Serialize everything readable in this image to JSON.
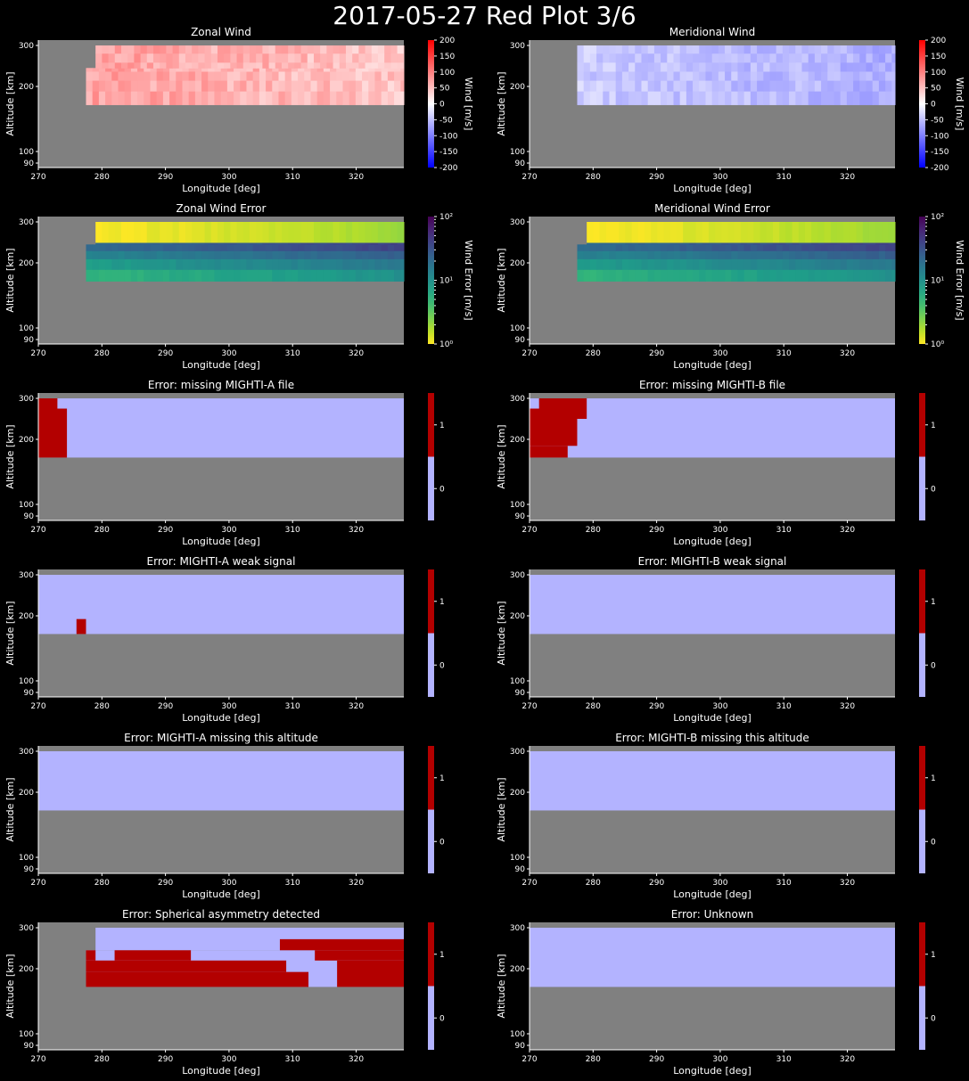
{
  "figure": {
    "title": "2017-05-27 Red Plot 3/6"
  },
  "axes_common": {
    "xlabel": "Longitude [deg]",
    "ylabel": "Altitude [km]",
    "xticks": [
      270,
      280,
      290,
      300,
      310,
      320
    ],
    "yticks": [
      90,
      100,
      200,
      300
    ],
    "xlim": [
      270,
      327.5
    ],
    "ylim": [
      87,
      312
    ]
  },
  "colors": {
    "background": "#000000",
    "nodata": "#808080",
    "flag_0": "#b3b3ff",
    "flag_1": "#b30000",
    "text": "#ffffff"
  },
  "chart_data": [
    {
      "id": "zonal-wind",
      "type": "heatmap",
      "title": "Zonal Wind",
      "colorbar": {
        "kind": "diverging",
        "label": "Wind [m/s]",
        "ticks": [
          200,
          150,
          100,
          50,
          0,
          -50,
          -100,
          -150,
          -200
        ],
        "range": [
          -200,
          200
        ]
      },
      "valid_region": {
        "rows": [
          {
            "alt": [
              172,
              245
            ],
            "lon": [
              277.5,
              327.5
            ]
          },
          {
            "alt": [
              245,
              300
            ],
            "lon": [
              279,
              327.5
            ]
          }
        ]
      },
      "pattern": {
        "base": 75,
        "amp": 45
      }
    },
    {
      "id": "meridional-wind",
      "type": "heatmap",
      "title": "Meridional Wind",
      "colorbar": {
        "kind": "diverging",
        "label": "Wind [m/s]",
        "ticks": [
          200,
          150,
          100,
          50,
          0,
          -50,
          -100,
          -150,
          -200
        ],
        "range": [
          -200,
          200
        ]
      },
      "valid_region": {
        "rows": [
          {
            "alt": [
              172,
              300
            ],
            "lon": [
              277.5,
              327.5
            ]
          }
        ]
      },
      "pattern": {
        "base": -40,
        "amp": 35
      }
    },
    {
      "id": "zonal-wind-error",
      "type": "heatmap",
      "title": "Zonal Wind Error",
      "colorbar": {
        "kind": "viridis",
        "label": "Wind Error [m/s]",
        "ticks": [
          "10²",
          "10¹",
          "10⁰"
        ],
        "range": [
          1,
          100
        ]
      },
      "valid_region": {
        "rows": [
          {
            "alt": [
              172,
              245
            ],
            "lon": [
              277.5,
              327.5
            ]
          },
          {
            "alt": [
              245,
              300
            ],
            "lon": [
              279,
              327.5
            ]
          }
        ]
      },
      "bands": [
        0.55,
        0.5,
        0.4,
        0.1,
        0.05
      ]
    },
    {
      "id": "meridional-wind-error",
      "type": "heatmap",
      "title": "Meridional Wind Error",
      "colorbar": {
        "kind": "viridis",
        "label": "Wind Error [m/s]",
        "ticks": [
          "10²",
          "10¹",
          "10⁰"
        ],
        "range": [
          1,
          100
        ]
      },
      "valid_region": {
        "rows": [
          {
            "alt": [
              172,
              245
            ],
            "lon": [
              277.5,
              327.5
            ]
          },
          {
            "alt": [
              245,
              300
            ],
            "lon": [
              279,
              327.5
            ]
          }
        ]
      },
      "bands": [
        0.62,
        0.5,
        0.4,
        0.15,
        0.07
      ]
    },
    {
      "id": "err-missing-a",
      "type": "heatmap",
      "title": "Error: missing MIGHTI-A file",
      "colorbar": {
        "kind": "flag",
        "ticks": [
          1,
          0
        ]
      },
      "valid_region": {
        "rows": [
          {
            "alt": [
              172,
              300
            ],
            "lon": [
              270,
              327.5
            ]
          }
        ]
      },
      "flagged": [
        {
          "alt": [
            172,
            275
          ],
          "lon": [
            270,
            274.5
          ]
        },
        {
          "alt": [
            275,
            300
          ],
          "lon": [
            270,
            273
          ]
        }
      ]
    },
    {
      "id": "err-missing-b",
      "type": "heatmap",
      "title": "Error: missing MIGHTI-B file",
      "colorbar": {
        "kind": "flag",
        "ticks": [
          1,
          0
        ]
      },
      "valid_region": {
        "rows": [
          {
            "alt": [
              172,
              300
            ],
            "lon": [
              270,
              327.5
            ]
          }
        ]
      },
      "flagged": [
        {
          "alt": [
            172,
            190
          ],
          "lon": [
            270,
            276
          ]
        },
        {
          "alt": [
            190,
            250
          ],
          "lon": [
            270,
            277.5
          ]
        },
        {
          "alt": [
            250,
            275
          ],
          "lon": [
            270,
            279
          ]
        },
        {
          "alt": [
            275,
            300
          ],
          "lon": [
            271.5,
            279
          ]
        }
      ]
    },
    {
      "id": "err-weak-a",
      "type": "heatmap",
      "title": "Error: MIGHTI-A weak signal",
      "colorbar": {
        "kind": "flag",
        "ticks": [
          1,
          0
        ]
      },
      "valid_region": {
        "rows": [
          {
            "alt": [
              172,
              300
            ],
            "lon": [
              270,
              327.5
            ]
          }
        ]
      },
      "flagged": [
        {
          "alt": [
            172,
            195
          ],
          "lon": [
            276,
            277.5
          ]
        }
      ]
    },
    {
      "id": "err-weak-b",
      "type": "heatmap",
      "title": "Error: MIGHTI-B weak signal",
      "colorbar": {
        "kind": "flag",
        "ticks": [
          1,
          0
        ]
      },
      "valid_region": {
        "rows": [
          {
            "alt": [
              172,
              300
            ],
            "lon": [
              270,
              327.5
            ]
          }
        ]
      },
      "flagged": []
    },
    {
      "id": "err-alt-a",
      "type": "heatmap",
      "title": "Error: MIGHTI-A missing this altitude",
      "colorbar": {
        "kind": "flag",
        "ticks": [
          1,
          0
        ]
      },
      "valid_region": {
        "rows": [
          {
            "alt": [
              172,
              300
            ],
            "lon": [
              270,
              327.5
            ]
          }
        ]
      },
      "flagged": []
    },
    {
      "id": "err-alt-b",
      "type": "heatmap",
      "title": "Error: MIGHTI-B missing this altitude",
      "colorbar": {
        "kind": "flag",
        "ticks": [
          1,
          0
        ]
      },
      "valid_region": {
        "rows": [
          {
            "alt": [
              172,
              300
            ],
            "lon": [
              270,
              327.5
            ]
          }
        ]
      },
      "flagged": []
    },
    {
      "id": "err-asym",
      "type": "heatmap",
      "title": "Error: Spherical asymmetry detected",
      "colorbar": {
        "kind": "flag",
        "ticks": [
          1,
          0
        ]
      },
      "valid_region": {
        "rows": [
          {
            "alt": [
              172,
              245
            ],
            "lon": [
              277.5,
              327.5
            ]
          },
          {
            "alt": [
              245,
              300
            ],
            "lon": [
              279,
              327.5
            ]
          }
        ]
      },
      "flagged": [
        {
          "alt": [
            172,
            195
          ],
          "lon": [
            277.5,
            312.5
          ]
        },
        {
          "alt": [
            172,
            220
          ],
          "lon": [
            317,
            327.5
          ]
        },
        {
          "alt": [
            195,
            220
          ],
          "lon": [
            277.5,
            309
          ]
        },
        {
          "alt": [
            220,
            245
          ],
          "lon": [
            277.5,
            279
          ]
        },
        {
          "alt": [
            220,
            245
          ],
          "lon": [
            282,
            294
          ]
        },
        {
          "alt": [
            220,
            245
          ],
          "lon": [
            313.5,
            327.5
          ]
        },
        {
          "alt": [
            245,
            272
          ],
          "lon": [
            308,
            327.5
          ]
        }
      ]
    },
    {
      "id": "err-unknown",
      "type": "heatmap",
      "title": "Error: Unknown",
      "colorbar": {
        "kind": "flag",
        "ticks": [
          1,
          0
        ]
      },
      "valid_region": {
        "rows": [
          {
            "alt": [
              172,
              300
            ],
            "lon": [
              270,
              327.5
            ]
          }
        ]
      },
      "flagged": []
    }
  ]
}
